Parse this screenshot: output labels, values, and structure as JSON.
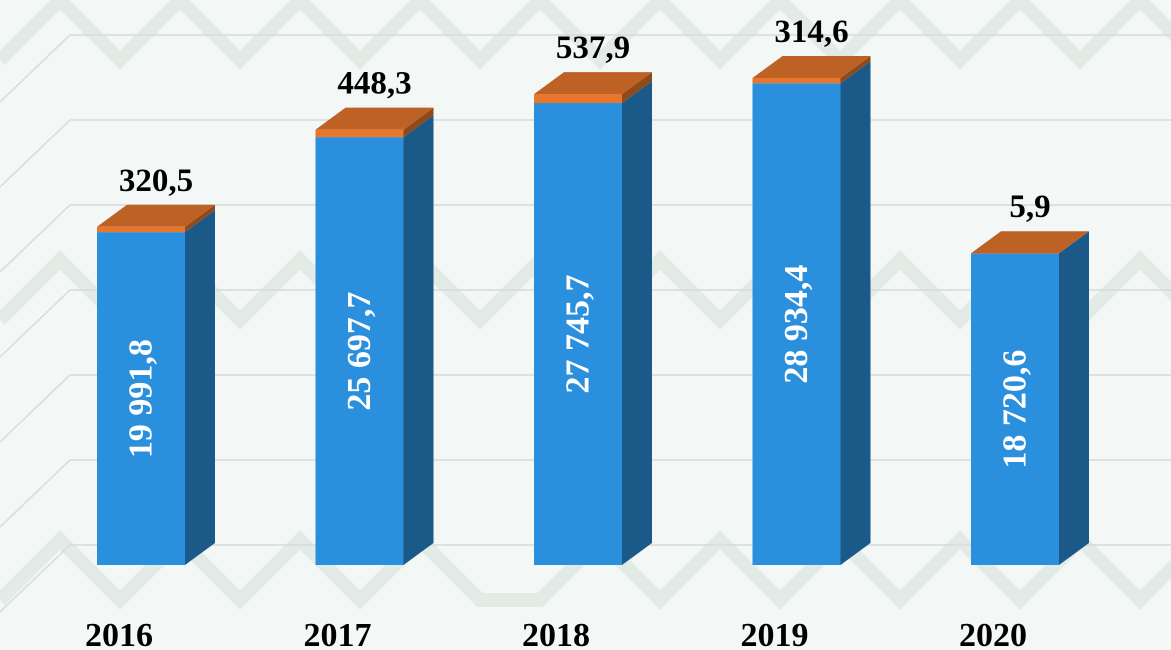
{
  "chart_data": {
    "type": "bar3d_stacked",
    "categories": [
      "2016",
      "2017",
      "2018",
      "2019",
      "2020"
    ],
    "series": [
      {
        "color": "#2a8fdc",
        "values": [
          19991.8,
          25697.7,
          27745.7,
          28934.4,
          18720.6
        ],
        "value_labels": [
          "19 991,8",
          "25 697,7",
          "27 745,7",
          "28 934,4",
          "18 720,6"
        ]
      },
      {
        "color": "#e8762c",
        "values": [
          320.5,
          448.3,
          537.9,
          314.6,
          5.9
        ],
        "value_labels": [
          "320,5",
          "448,3",
          "537,9",
          "314,6",
          "5,9"
        ]
      }
    ]
  }
}
